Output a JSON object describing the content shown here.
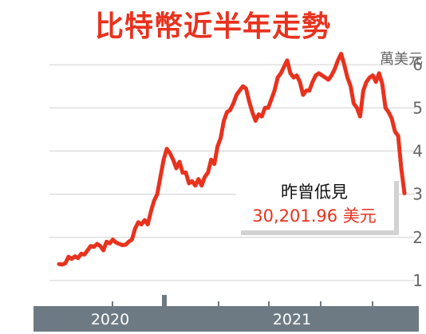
{
  "chart_data": {
    "type": "line",
    "title": "比特幣近半年走勢",
    "unit": "萬美元",
    "ylim": [
      0.5,
      6.5
    ],
    "yticks": [
      {
        "value": 6,
        "label": "6"
      },
      {
        "value": 5,
        "label": "5"
      },
      {
        "value": 4,
        "label": "4"
      },
      {
        "value": 3,
        "label": "3"
      },
      {
        "value": 2,
        "label": "2"
      },
      {
        "value": 1,
        "label": "1"
      }
    ],
    "years": [
      "2020",
      "2021"
    ],
    "grid": true,
    "annotation": {
      "line1": "昨曾低見",
      "line2": "30,201.96 美元"
    },
    "series": [
      {
        "values": [
          1.38,
          1.37,
          1.4,
          1.55,
          1.5,
          1.56,
          1.52,
          1.62,
          1.6,
          1.7,
          1.8,
          1.78,
          1.85,
          1.8,
          1.7,
          1.9,
          1.86,
          1.95,
          1.88,
          1.85,
          1.82,
          1.83,
          1.9,
          1.95,
          2.2,
          2.35,
          2.3,
          2.4,
          2.3,
          2.6,
          2.85,
          3.0,
          3.4,
          3.8,
          4.05,
          3.95,
          3.8,
          3.6,
          3.75,
          3.5,
          3.5,
          3.25,
          3.3,
          3.2,
          3.35,
          3.2,
          3.4,
          3.5,
          3.8,
          3.7,
          4.1,
          4.3,
          4.7,
          4.9,
          4.95,
          5.1,
          5.3,
          5.4,
          5.5,
          5.45,
          5.15,
          4.9,
          4.7,
          4.85,
          4.8,
          5.0,
          5.0,
          5.2,
          5.4,
          5.7,
          5.8,
          5.95,
          6.1,
          5.8,
          5.7,
          5.75,
          5.6,
          5.3,
          5.4,
          5.4,
          5.6,
          5.75,
          5.8,
          5.75,
          5.7,
          5.65,
          5.75,
          5.9,
          6.1,
          6.25,
          6.0,
          5.7,
          5.5,
          5.1,
          5.0,
          4.8,
          5.4,
          5.6,
          5.7,
          5.75,
          5.6,
          5.8,
          5.55,
          5.0,
          4.9,
          4.75,
          4.45,
          4.35,
          3.6,
          3.02
        ]
      }
    ]
  },
  "colors": {
    "title": "#e8321e",
    "line": "#e8321e",
    "grid": "#d0d0d0",
    "axis_bar": "#6e7a83"
  }
}
